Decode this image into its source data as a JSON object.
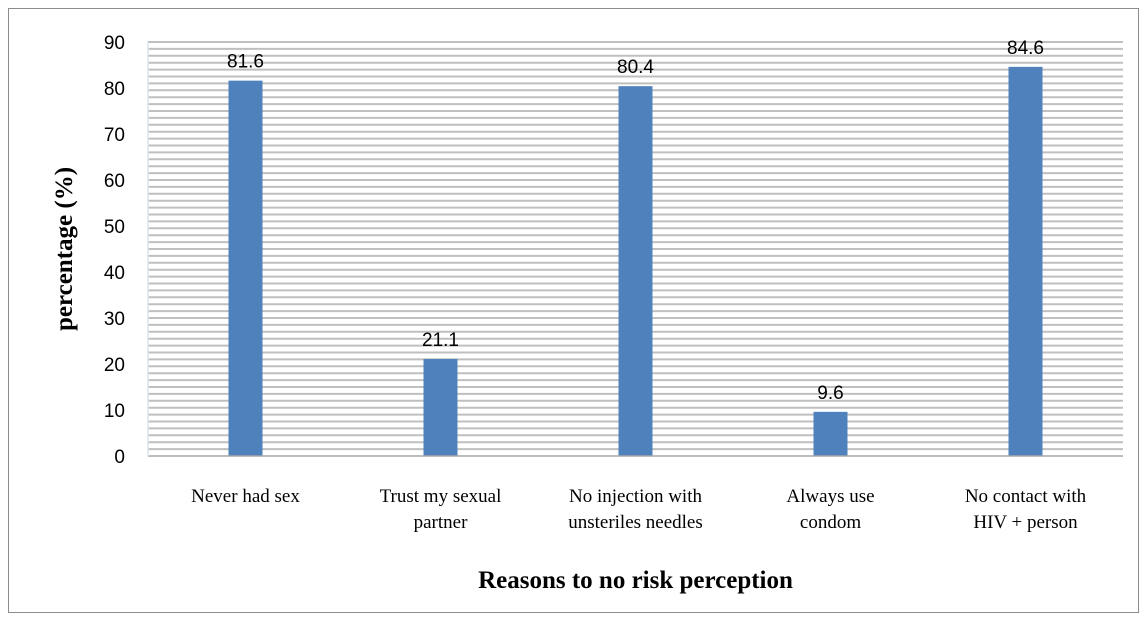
{
  "chart_data": {
    "type": "bar",
    "categories": [
      [
        "Never had sex"
      ],
      [
        "Trust my sexual",
        "partner"
      ],
      [
        "No injection with",
        "unsteriles needles"
      ],
      [
        "Always use",
        "condom"
      ],
      [
        "No contact with",
        "HIV + person"
      ]
    ],
    "values": [
      81.6,
      21.1,
      80.4,
      9.6,
      84.6
    ],
    "value_labels": [
      "81.6",
      "21.1",
      "80.4",
      "9.6",
      "84.6"
    ],
    "xlabel": "Reasons to no risk perception",
    "ylabel": "percentage (%)",
    "ylim": [
      0,
      90
    ],
    "yticks": [
      0,
      10,
      20,
      30,
      40,
      50,
      60,
      70,
      80,
      90
    ],
    "grid": true,
    "legend": "none",
    "colors": {
      "bar": "#4f81bd",
      "grid": "#bfbfbf",
      "axis": "#a6a6a6"
    }
  }
}
